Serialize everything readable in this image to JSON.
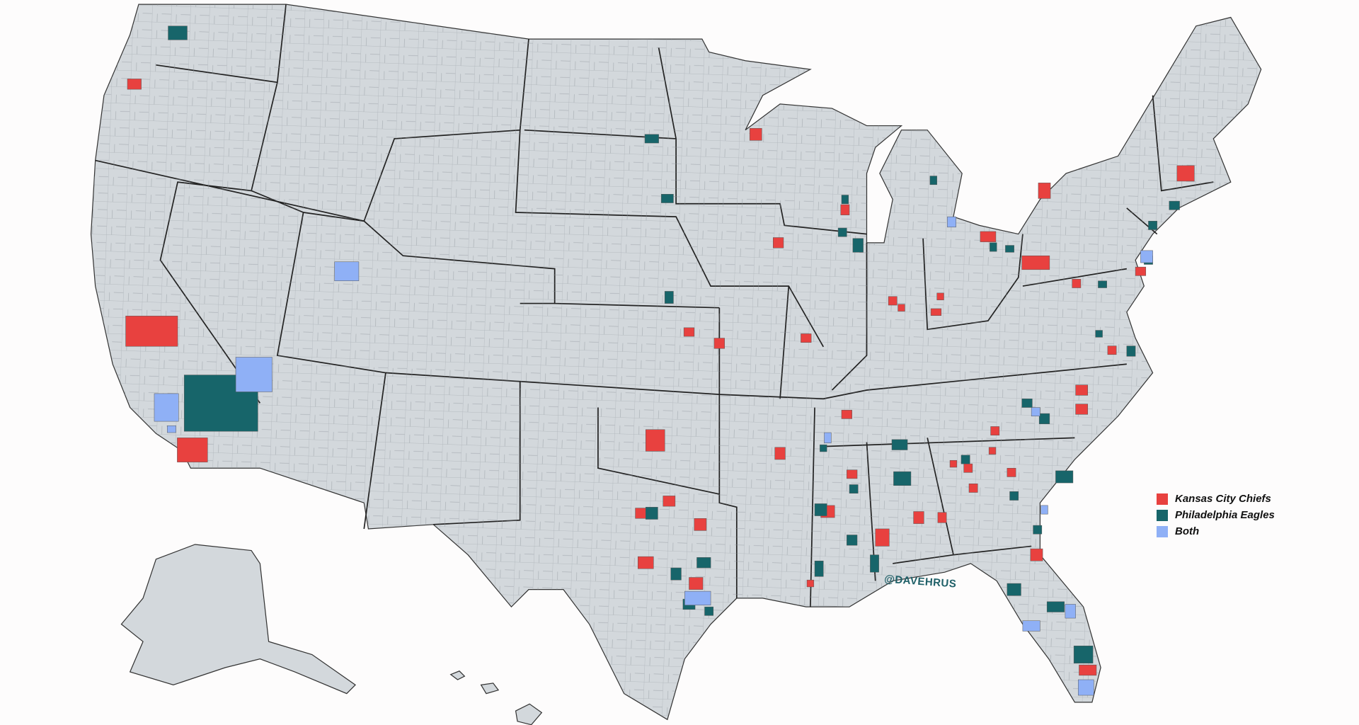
{
  "legend": {
    "items": [
      {
        "label": "Kansas City Chiefs",
        "color": "#e8413f"
      },
      {
        "label": "Philadelphia Eagles",
        "color": "#17656a"
      },
      {
        "label": "Both",
        "color": "#8fb0f6"
      }
    ]
  },
  "credit": "@DAVEHRUS"
}
